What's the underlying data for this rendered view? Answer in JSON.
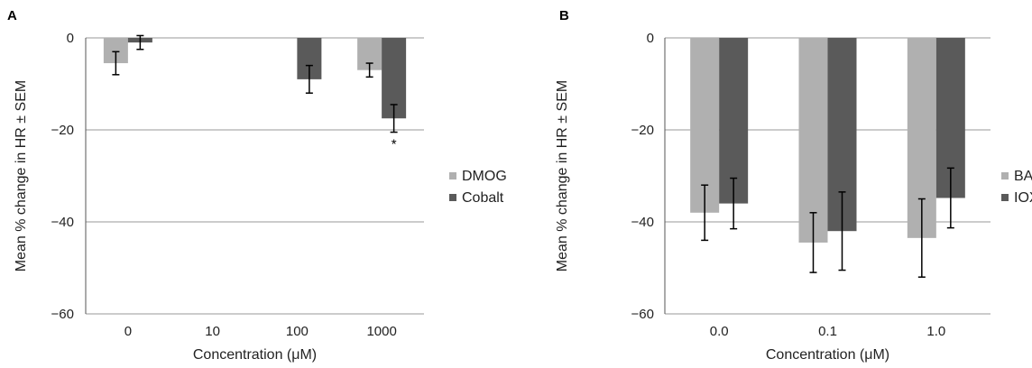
{
  "colors": {
    "series_light": "#b0b0b0",
    "series_dark": "#5a5a5a",
    "grid": "#9a9a9a",
    "axis": "#555555",
    "error_bar": "#000000"
  },
  "chart_data": [
    {
      "panel": "A",
      "type": "bar",
      "categories": [
        "0",
        "10",
        "100",
        "1000"
      ],
      "series": [
        {
          "name": "DMOG",
          "values": [
            -5.5,
            null,
            null,
            -7
          ],
          "errors": [
            2.5,
            null,
            null,
            1.5
          ]
        },
        {
          "name": "Cobalt",
          "values": [
            -1,
            null,
            -9,
            -17.5
          ],
          "errors": [
            1.5,
            null,
            3,
            3
          ]
        }
      ],
      "xlabel": "Concentration (μM)",
      "ylabel": "Mean % change in HR ± SEM",
      "ylim": [
        -60,
        0
      ],
      "yticks": [
        0,
        -20,
        -40,
        -60
      ],
      "grid": true,
      "legend_position": "right",
      "annotations": [
        {
          "category": "1000",
          "series": "Cobalt",
          "text": "*"
        }
      ]
    },
    {
      "panel": "B",
      "type": "bar",
      "categories": [
        "0.0",
        "0.1",
        "1.0"
      ],
      "series": [
        {
          "name": "BAY",
          "values": [
            -38,
            -44.5,
            -43.5
          ],
          "errors": [
            6,
            6.5,
            8.5
          ]
        },
        {
          "name": "IOX",
          "values": [
            -36,
            -42,
            -34.8
          ],
          "errors": [
            5.5,
            8.5,
            6.5
          ]
        }
      ],
      "xlabel": "Concentration (μM)",
      "ylabel": "Mean % change in HR ± SEM",
      "ylim": [
        -60,
        0
      ],
      "yticks": [
        0,
        -20,
        -40,
        -60
      ],
      "grid": true,
      "legend_position": "right",
      "annotations": []
    }
  ]
}
